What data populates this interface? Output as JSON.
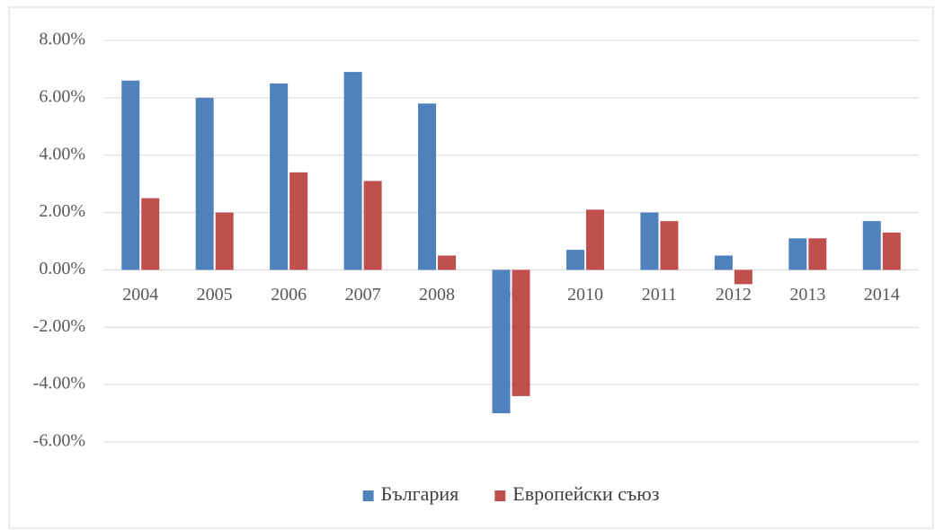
{
  "chart_data": {
    "type": "bar",
    "categories": [
      "2004",
      "2005",
      "2006",
      "2007",
      "2008",
      "2009",
      "2010",
      "2011",
      "2012",
      "2013",
      "2014"
    ],
    "series": [
      {
        "name": "България",
        "color": "#4f81bd",
        "values": [
          6.6,
          6.0,
          6.5,
          6.9,
          5.8,
          -5.0,
          0.7,
          2.0,
          0.5,
          1.1,
          1.7
        ]
      },
      {
        "name": "Европейски съюз",
        "color": "#c0504d",
        "values": [
          2.5,
          2.0,
          3.4,
          3.1,
          0.5,
          -4.4,
          2.1,
          1.7,
          -0.5,
          1.1,
          1.3
        ]
      }
    ],
    "ylim": [
      -6,
      8
    ],
    "yticks": [
      {
        "value": 8,
        "label": "8.00%"
      },
      {
        "value": 6,
        "label": "6.00%"
      },
      {
        "value": 4,
        "label": "4.00%"
      },
      {
        "value": 2,
        "label": "2.00%"
      },
      {
        "value": 0,
        "label": "0.00%"
      },
      {
        "value": -2,
        "label": "-2.00%"
      },
      {
        "value": -4,
        "label": "-4.00%"
      },
      {
        "value": -6,
        "label": "-6.00%"
      }
    ],
    "grid": true,
    "legend": "bottom"
  }
}
